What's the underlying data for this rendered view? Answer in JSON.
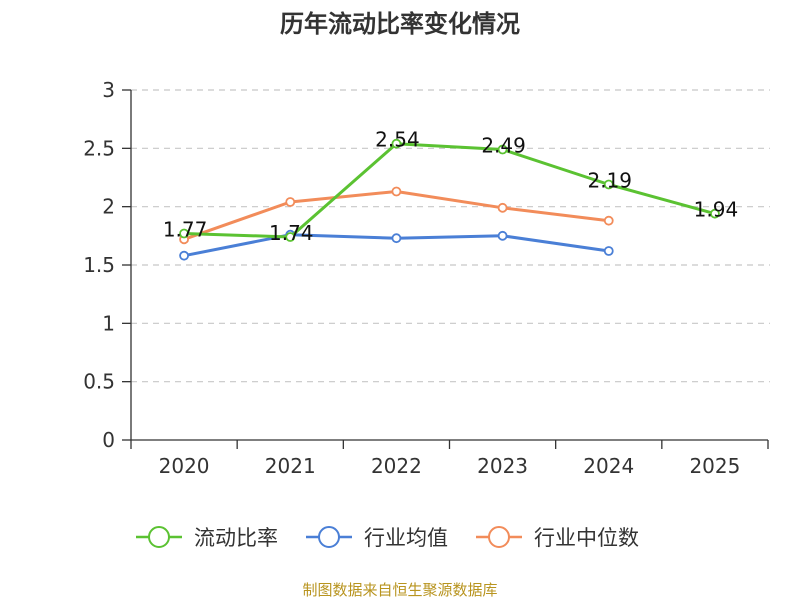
{
  "chart_data": {
    "type": "line",
    "title": "历年流动比率变化情况",
    "categories": [
      "2020",
      "2021",
      "2022",
      "2023",
      "2024",
      "2025"
    ],
    "ylim": [
      0,
      3
    ],
    "yticks": [
      0,
      0.5,
      1,
      1.5,
      2,
      2.5,
      3
    ],
    "ytick_labels": [
      "0",
      "0.5",
      "1",
      "1.5",
      "2",
      "2.5",
      "3"
    ],
    "grid": true,
    "legend_position": "bottom",
    "series": [
      {
        "name": "流动比率",
        "color": "#5bc232",
        "values": [
          1.77,
          1.74,
          2.54,
          2.49,
          2.19,
          1.94
        ],
        "labels": [
          "1.77",
          "1.74",
          "2.54",
          "2.49",
          "2.19",
          "1.94"
        ],
        "show_labels": true
      },
      {
        "name": "行业均值",
        "color": "#4a7fd6",
        "values": [
          1.58,
          1.76,
          1.73,
          1.75,
          1.62,
          null
        ],
        "show_labels": false
      },
      {
        "name": "行业中位数",
        "color": "#f28c5a",
        "values": [
          1.72,
          2.04,
          2.13,
          1.99,
          1.88,
          null
        ],
        "show_labels": false
      }
    ]
  },
  "source_text": "制图数据来自恒生聚源数据库",
  "source_color": "#b8941f"
}
